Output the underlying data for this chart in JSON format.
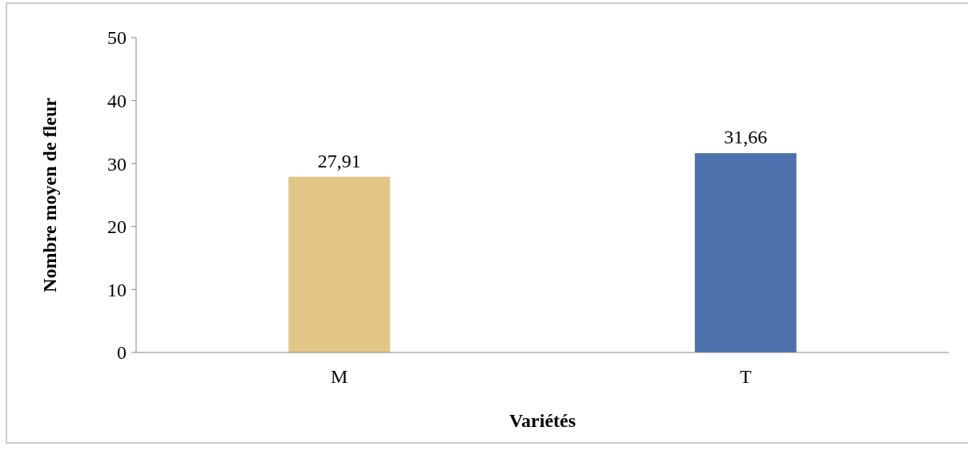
{
  "chart_data": {
    "type": "bar",
    "xlabel": "Variétés",
    "ylabel": "Nombre moyen de fleur",
    "categories": [
      "M",
      "T"
    ],
    "values": [
      27.91,
      31.66
    ],
    "colors": [
      "#e3c685",
      "#4d71ad"
    ],
    "value_labels": [
      "27,91",
      "31,66"
    ],
    "ylim": [
      0,
      50
    ],
    "yticks": [
      0,
      10,
      20,
      30,
      40,
      50
    ],
    "grid": false
  }
}
